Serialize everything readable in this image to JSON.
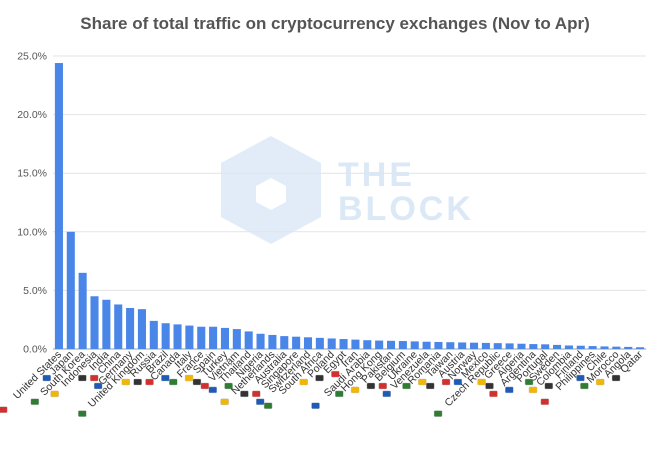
{
  "chart_data": {
    "type": "bar",
    "title": "Share of total traffic on cryptocurrency exchanges (Nov to Apr)",
    "xlabel": "",
    "ylabel": "",
    "ylim": [
      0,
      25
    ],
    "yticks": [
      "0.0%",
      "5.0%",
      "10.0%",
      "15.0%",
      "20.0%",
      "25.0%"
    ],
    "grid": true,
    "bar_color": "#4a86e8",
    "categories": [
      "United States",
      "Japan",
      "South Korea",
      "Indonesia",
      "India",
      "China",
      "Germany",
      "United Kingdom",
      "Russia",
      "Brazil",
      "Canada",
      "Italy",
      "France",
      "Spain",
      "Turkey",
      "Vietnam",
      "Thailand",
      "Nigeria",
      "Netherlands",
      "Australia",
      "Singapore",
      "Switzerland",
      "South Africa",
      "Poland",
      "Egypt",
      "Iran",
      "Saudi Arabia",
      "Hong Kong",
      "Pakistan",
      "Belgium",
      "Ukraine",
      "Venezuela",
      "Romania",
      "Taiwan",
      "Austria",
      "Norway",
      "Mexico",
      "Czech Republic",
      "Greece",
      "Algeria",
      "Argentina",
      "Portugal",
      "Sweden",
      "Colombia",
      "Finland",
      "Philippines",
      "Chile",
      "Morocco",
      "Angola",
      "Qatar"
    ],
    "values": [
      24.4,
      10.0,
      6.5,
      4.5,
      4.2,
      3.8,
      3.5,
      3.4,
      2.4,
      2.2,
      2.1,
      2.0,
      1.9,
      1.9,
      1.8,
      1.7,
      1.5,
      1.3,
      1.2,
      1.1,
      1.05,
      1.0,
      0.95,
      0.9,
      0.85,
      0.8,
      0.75,
      0.72,
      0.7,
      0.68,
      0.65,
      0.62,
      0.6,
      0.58,
      0.56,
      0.54,
      0.52,
      0.5,
      0.48,
      0.45,
      0.42,
      0.4,
      0.35,
      0.3,
      0.28,
      0.25,
      0.22,
      0.2,
      0.18,
      0.15
    ]
  },
  "watermark": {
    "line1": "THE",
    "line2": "BLOCK",
    "color": "#dbe8f6"
  }
}
